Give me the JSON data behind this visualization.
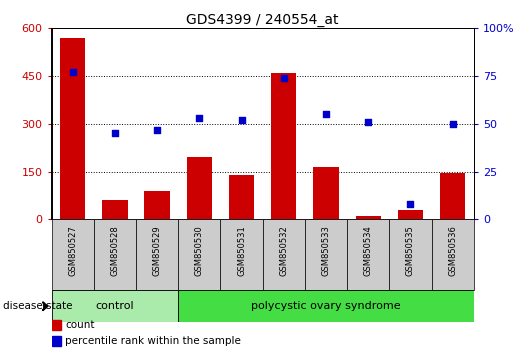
{
  "title": "GDS4399 / 240554_at",
  "samples": [
    "GSM850527",
    "GSM850528",
    "GSM850529",
    "GSM850530",
    "GSM850531",
    "GSM850532",
    "GSM850533",
    "GSM850534",
    "GSM850535",
    "GSM850536"
  ],
  "counts": [
    570,
    60,
    90,
    195,
    140,
    460,
    165,
    10,
    30,
    145
  ],
  "percentiles": [
    77,
    45,
    47,
    53,
    52,
    74,
    55,
    51,
    8,
    50
  ],
  "bar_color": "#cc0000",
  "scatter_color": "#0000cc",
  "ylim_left": [
    0,
    600
  ],
  "ylim_right": [
    0,
    100
  ],
  "yticks_left": [
    0,
    150,
    300,
    450,
    600
  ],
  "yticks_right": [
    0,
    25,
    50,
    75,
    100
  ],
  "ytick_labels_left": [
    "0",
    "150",
    "300",
    "450",
    "600"
  ],
  "ytick_labels_right": [
    "0",
    "25",
    "50",
    "75",
    "100%"
  ],
  "control_samples": 3,
  "control_label": "control",
  "disease_label": "polycystic ovary syndrome",
  "disease_state_label": "disease state",
  "control_bg": "#aaeaaa",
  "disease_bg": "#44dd44",
  "bar_bg": "#cccccc",
  "legend_count_label": "count",
  "legend_percentile_label": "percentile rank within the sample",
  "grid_color": "#000000",
  "background_color": "#ffffff",
  "bar_width": 0.6,
  "figsize": [
    5.15,
    3.54
  ],
  "dpi": 100
}
